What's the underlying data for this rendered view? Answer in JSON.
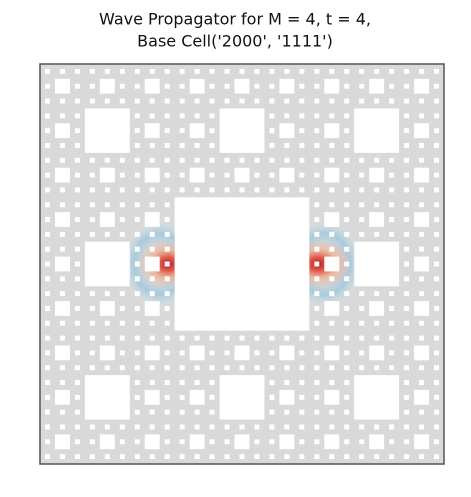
{
  "chart_data": {
    "type": "heatmap",
    "title": "Wave Propagator for M = 4, t = 4,",
    "subtitle": "Base Cell('2000', '1111')"
  }
}
